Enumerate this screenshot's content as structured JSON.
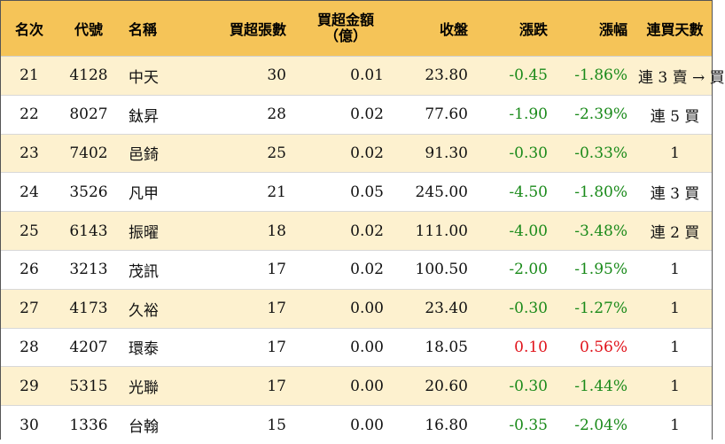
{
  "headers": {
    "rank": "名次",
    "code": "代號",
    "name": "名稱",
    "net_buy_lots": "買超張數",
    "net_buy_amount": "買超金額",
    "net_buy_amount_unit": "（億）",
    "close": "收盤",
    "change": "漲跌",
    "change_pct": "漲幅",
    "consecutive_days": "連買天數"
  },
  "colors": {
    "header_bg": "#f5c458",
    "odd_row_bg": "#fdf1cf",
    "negative": "#1a8a1a",
    "positive": "#e0121a"
  },
  "rows": [
    {
      "rank": "21",
      "code": "4128",
      "name": "中天",
      "lots": "30",
      "amount": "0.01",
      "close": "23.80",
      "change": "-0.45",
      "pct": "-1.86%",
      "days": "連 3 賣 → 買",
      "dir": "neg"
    },
    {
      "rank": "22",
      "code": "8027",
      "name": "鈦昇",
      "lots": "28",
      "amount": "0.02",
      "close": "77.60",
      "change": "-1.90",
      "pct": "-2.39%",
      "days": "連 5 買",
      "dir": "neg"
    },
    {
      "rank": "23",
      "code": "7402",
      "name": "邑錡",
      "lots": "25",
      "amount": "0.02",
      "close": "91.30",
      "change": "-0.30",
      "pct": "-0.33%",
      "days": "1",
      "dir": "neg"
    },
    {
      "rank": "24",
      "code": "3526",
      "name": "凡甲",
      "lots": "21",
      "amount": "0.05",
      "close": "245.00",
      "change": "-4.50",
      "pct": "-1.80%",
      "days": "連 3 買",
      "dir": "neg"
    },
    {
      "rank": "25",
      "code": "6143",
      "name": "振曜",
      "lots": "18",
      "amount": "0.02",
      "close": "111.00",
      "change": "-4.00",
      "pct": "-3.48%",
      "days": "連 2 買",
      "dir": "neg"
    },
    {
      "rank": "26",
      "code": "3213",
      "name": "茂訊",
      "lots": "17",
      "amount": "0.02",
      "close": "100.50",
      "change": "-2.00",
      "pct": "-1.95%",
      "days": "1",
      "dir": "neg"
    },
    {
      "rank": "27",
      "code": "4173",
      "name": "久裕",
      "lots": "17",
      "amount": "0.00",
      "close": "23.40",
      "change": "-0.30",
      "pct": "-1.27%",
      "days": "1",
      "dir": "neg"
    },
    {
      "rank": "28",
      "code": "4207",
      "name": "環泰",
      "lots": "17",
      "amount": "0.00",
      "close": "18.05",
      "change": "0.10",
      "pct": "0.56%",
      "days": "1",
      "dir": "pos"
    },
    {
      "rank": "29",
      "code": "5315",
      "name": "光聯",
      "lots": "17",
      "amount": "0.00",
      "close": "20.60",
      "change": "-0.30",
      "pct": "-1.44%",
      "days": "1",
      "dir": "neg"
    },
    {
      "rank": "30",
      "code": "1336",
      "name": "台翰",
      "lots": "15",
      "amount": "0.00",
      "close": "16.80",
      "change": "-0.35",
      "pct": "-2.04%",
      "days": "1",
      "dir": "neg"
    }
  ]
}
